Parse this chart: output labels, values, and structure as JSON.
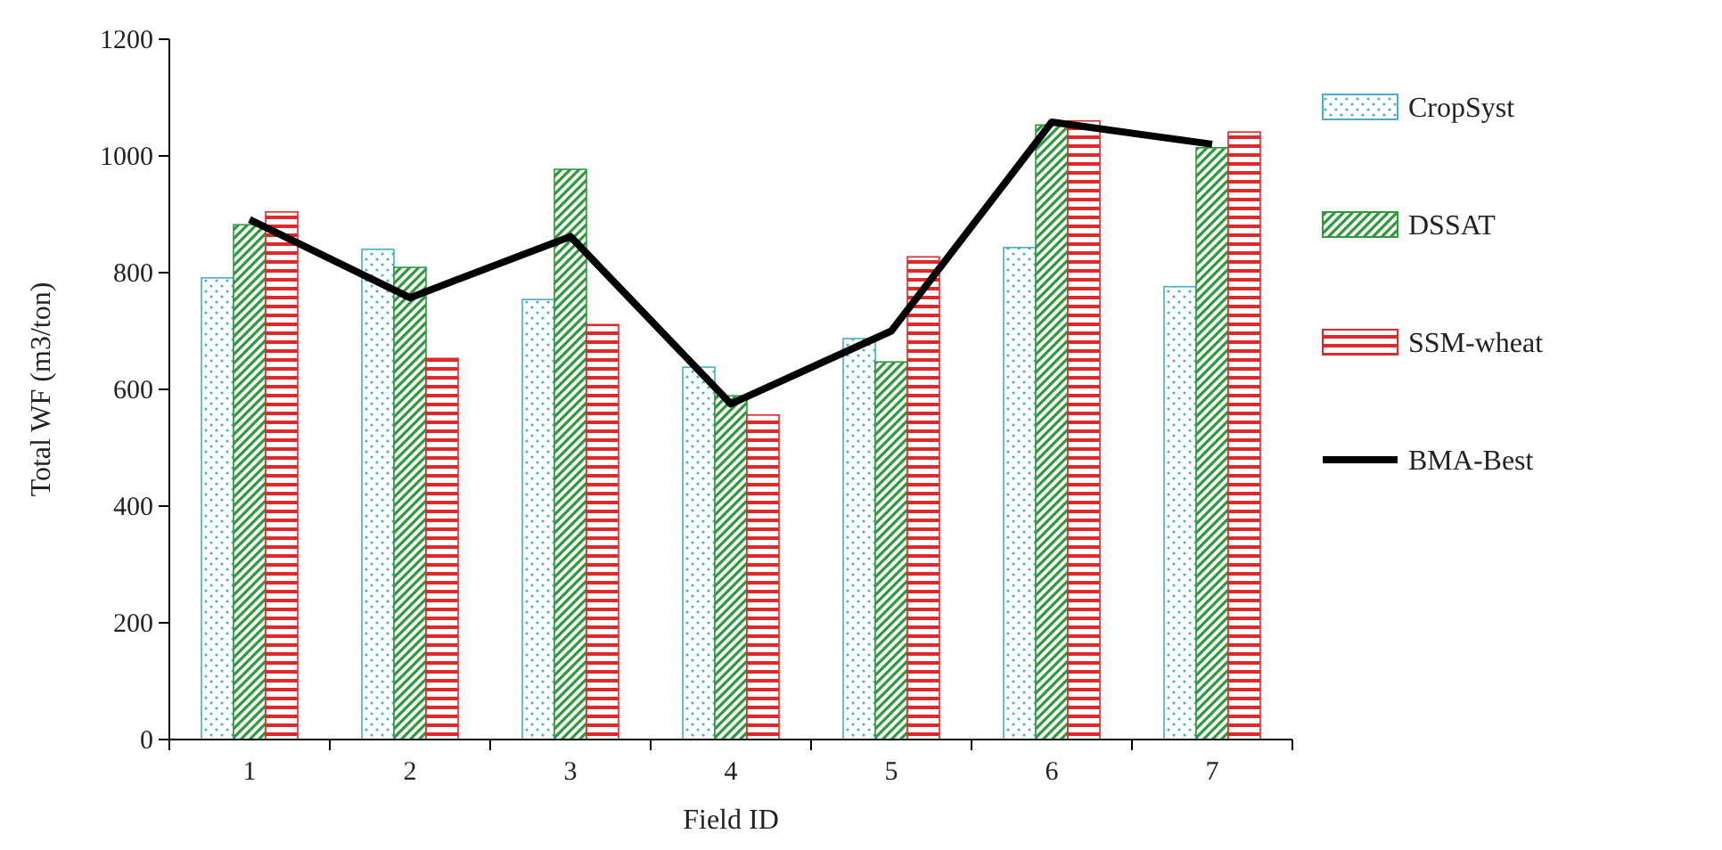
{
  "chart_data": {
    "type": "bar",
    "xlabel": "Field ID",
    "ylabel": "Total WF (m3/ton)",
    "categories": [
      "1",
      "2",
      "3",
      "4",
      "5",
      "6",
      "7"
    ],
    "series": [
      {
        "name": "CropSyst",
        "color": "#4aaec4",
        "values": [
          791,
          840,
          754,
          638,
          687,
          843,
          776
        ]
      },
      {
        "name": "DSSAT",
        "color": "#2e9a3c",
        "values": [
          882,
          809,
          977,
          589,
          647,
          1053,
          1014
        ]
      },
      {
        "name": "SSM-wheat",
        "color": "#e02828",
        "values": [
          904,
          653,
          711,
          556,
          827,
          1060,
          1041
        ]
      },
      {
        "name": "BMA-Best",
        "type": "line",
        "color": "#000000",
        "values": [
          891,
          757,
          862,
          575,
          700,
          1058,
          1020
        ]
      }
    ],
    "ylim": [
      0,
      1200
    ],
    "yticks": [
      0,
      200,
      400,
      600,
      800,
      1000,
      1200
    ],
    "grid": false,
    "legend": "right",
    "marker": "none",
    "line_style": "solid"
  }
}
